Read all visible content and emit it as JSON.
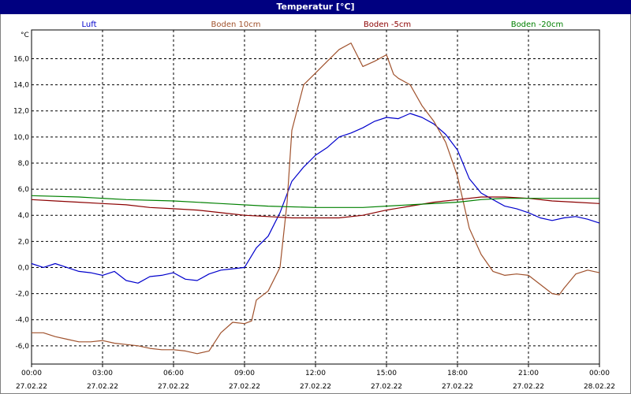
{
  "window": {
    "title": "Temperatur [°C]"
  },
  "chart_data": {
    "type": "line",
    "title": "Temperatur [°C]",
    "ylabel": "°C",
    "ylim": [
      -7.4,
      18.2
    ],
    "yticks": [
      "16,0",
      "14,0",
      "12,0",
      "10,0",
      "8,0",
      "6,0",
      "4,0",
      "2,0",
      "0,0",
      "-2,0",
      "-4,0",
      "-6,0"
    ],
    "ytick_values": [
      16,
      14,
      12,
      10,
      8,
      6,
      4,
      2,
      0,
      -2,
      -4,
      -6
    ],
    "xticks": [
      {
        "t": 0,
        "time": "00:00",
        "date": "27.02.22"
      },
      {
        "t": 3,
        "time": "03:00",
        "date": "27.02.22"
      },
      {
        "t": 6,
        "time": "06:00",
        "date": "27.02.22"
      },
      {
        "t": 9,
        "time": "09:00",
        "date": "27.02.22"
      },
      {
        "t": 12,
        "time": "12:00",
        "date": "27.02.22"
      },
      {
        "t": 15,
        "time": "15:00",
        "date": "27.02.22"
      },
      {
        "t": 18,
        "time": "18:00",
        "date": "27.02.22"
      },
      {
        "t": 21,
        "time": "21:00",
        "date": "27.02.22"
      },
      {
        "t": 24,
        "time": "00:00",
        "date": "28.02.22"
      }
    ],
    "grid": true,
    "series": [
      {
        "name": "Luft",
        "color": "#0000cc",
        "points": [
          [
            0,
            0.3
          ],
          [
            0.5,
            0.0
          ],
          [
            1,
            0.3
          ],
          [
            1.5,
            0.0
          ],
          [
            2,
            -0.3
          ],
          [
            2.5,
            -0.4
          ],
          [
            3,
            -0.6
          ],
          [
            3.5,
            -0.3
          ],
          [
            4,
            -1.0
          ],
          [
            4.5,
            -1.2
          ],
          [
            5,
            -0.7
          ],
          [
            5.5,
            -0.6
          ],
          [
            6,
            -0.4
          ],
          [
            6.5,
            -0.9
          ],
          [
            7,
            -1.0
          ],
          [
            7.5,
            -0.5
          ],
          [
            8,
            -0.2
          ],
          [
            8.5,
            -0.1
          ],
          [
            9,
            0.0
          ],
          [
            9.5,
            1.5
          ],
          [
            10,
            2.4
          ],
          [
            10.5,
            4.2
          ],
          [
            11,
            6.6
          ],
          [
            11.5,
            7.7
          ],
          [
            12,
            8.6
          ],
          [
            12.5,
            9.2
          ],
          [
            13,
            10.0
          ],
          [
            13.5,
            10.3
          ],
          [
            14,
            10.7
          ],
          [
            14.5,
            11.2
          ],
          [
            15,
            11.5
          ],
          [
            15.5,
            11.4
          ],
          [
            16,
            11.8
          ],
          [
            16.5,
            11.5
          ],
          [
            17,
            11.0
          ],
          [
            17.5,
            10.2
          ],
          [
            18,
            9.0
          ],
          [
            18.5,
            6.8
          ],
          [
            19,
            5.7
          ],
          [
            19.5,
            5.2
          ],
          [
            20,
            4.7
          ],
          [
            20.5,
            4.5
          ],
          [
            21,
            4.2
          ],
          [
            21.5,
            3.8
          ],
          [
            22,
            3.6
          ],
          [
            22.5,
            3.8
          ],
          [
            23,
            3.9
          ],
          [
            23.5,
            3.7
          ],
          [
            24,
            3.4
          ]
        ]
      },
      {
        "name": "Boden 10cm",
        "color": "#a0522d",
        "points": [
          [
            0,
            -5.0
          ],
          [
            0.5,
            -5.0
          ],
          [
            1,
            -5.3
          ],
          [
            1.5,
            -5.5
          ],
          [
            2,
            -5.7
          ],
          [
            2.5,
            -5.7
          ],
          [
            3,
            -5.6
          ],
          [
            3.5,
            -5.8
          ],
          [
            4,
            -5.9
          ],
          [
            4.5,
            -6.0
          ],
          [
            5,
            -6.2
          ],
          [
            5.5,
            -6.3
          ],
          [
            6,
            -6.3
          ],
          [
            6.5,
            -6.4
          ],
          [
            7,
            -6.6
          ],
          [
            7.5,
            -6.4
          ],
          [
            8,
            -5.0
          ],
          [
            8.5,
            -4.2
          ],
          [
            9,
            -4.3
          ],
          [
            9.3,
            -4.1
          ],
          [
            9.5,
            -2.5
          ],
          [
            10,
            -1.8
          ],
          [
            10.5,
            0.0
          ],
          [
            10.8,
            5.0
          ],
          [
            11,
            10.5
          ],
          [
            11.5,
            14.0
          ],
          [
            12,
            14.9
          ],
          [
            12.5,
            15.8
          ],
          [
            13,
            16.7
          ],
          [
            13.5,
            17.2
          ],
          [
            14,
            15.4
          ],
          [
            14.5,
            15.8
          ],
          [
            15,
            16.3
          ],
          [
            15.3,
            14.8
          ],
          [
            15.5,
            14.5
          ],
          [
            16,
            14.0
          ],
          [
            16.5,
            12.4
          ],
          [
            17,
            11.2
          ],
          [
            17.5,
            9.6
          ],
          [
            18,
            7.0
          ],
          [
            18.5,
            3.0
          ],
          [
            19,
            1.0
          ],
          [
            19.5,
            -0.3
          ],
          [
            20,
            -0.6
          ],
          [
            20.5,
            -0.5
          ],
          [
            21,
            -0.6
          ],
          [
            21.5,
            -1.3
          ],
          [
            22,
            -2.0
          ],
          [
            22.3,
            -2.1
          ],
          [
            22.5,
            -1.6
          ],
          [
            23,
            -0.5
          ],
          [
            23.5,
            -0.2
          ],
          [
            24,
            -0.4
          ]
        ]
      },
      {
        "name": "Boden -5cm",
        "color": "#8b0000",
        "points": [
          [
            0,
            5.2
          ],
          [
            1,
            5.1
          ],
          [
            2,
            5.0
          ],
          [
            3,
            4.9
          ],
          [
            4,
            4.8
          ],
          [
            5,
            4.6
          ],
          [
            6,
            4.5
          ],
          [
            7,
            4.4
          ],
          [
            8,
            4.2
          ],
          [
            9,
            4.0
          ],
          [
            10,
            3.9
          ],
          [
            11,
            3.8
          ],
          [
            12,
            3.8
          ],
          [
            13,
            3.8
          ],
          [
            14,
            4.0
          ],
          [
            15,
            4.4
          ],
          [
            16,
            4.7
          ],
          [
            17,
            5.0
          ],
          [
            18,
            5.2
          ],
          [
            19,
            5.4
          ],
          [
            20,
            5.4
          ],
          [
            21,
            5.3
          ],
          [
            22,
            5.1
          ],
          [
            23,
            5.0
          ],
          [
            24,
            4.9
          ]
        ]
      },
      {
        "name": "Boden -20cm",
        "color": "#008000",
        "points": [
          [
            0,
            5.5
          ],
          [
            2,
            5.4
          ],
          [
            4,
            5.2
          ],
          [
            6,
            5.1
          ],
          [
            8,
            4.9
          ],
          [
            10,
            4.7
          ],
          [
            12,
            4.6
          ],
          [
            13,
            4.6
          ],
          [
            14,
            4.6
          ],
          [
            16,
            4.8
          ],
          [
            18,
            5.0
          ],
          [
            19,
            5.2
          ],
          [
            20,
            5.3
          ],
          [
            22,
            5.3
          ],
          [
            24,
            5.3
          ]
        ]
      }
    ]
  }
}
